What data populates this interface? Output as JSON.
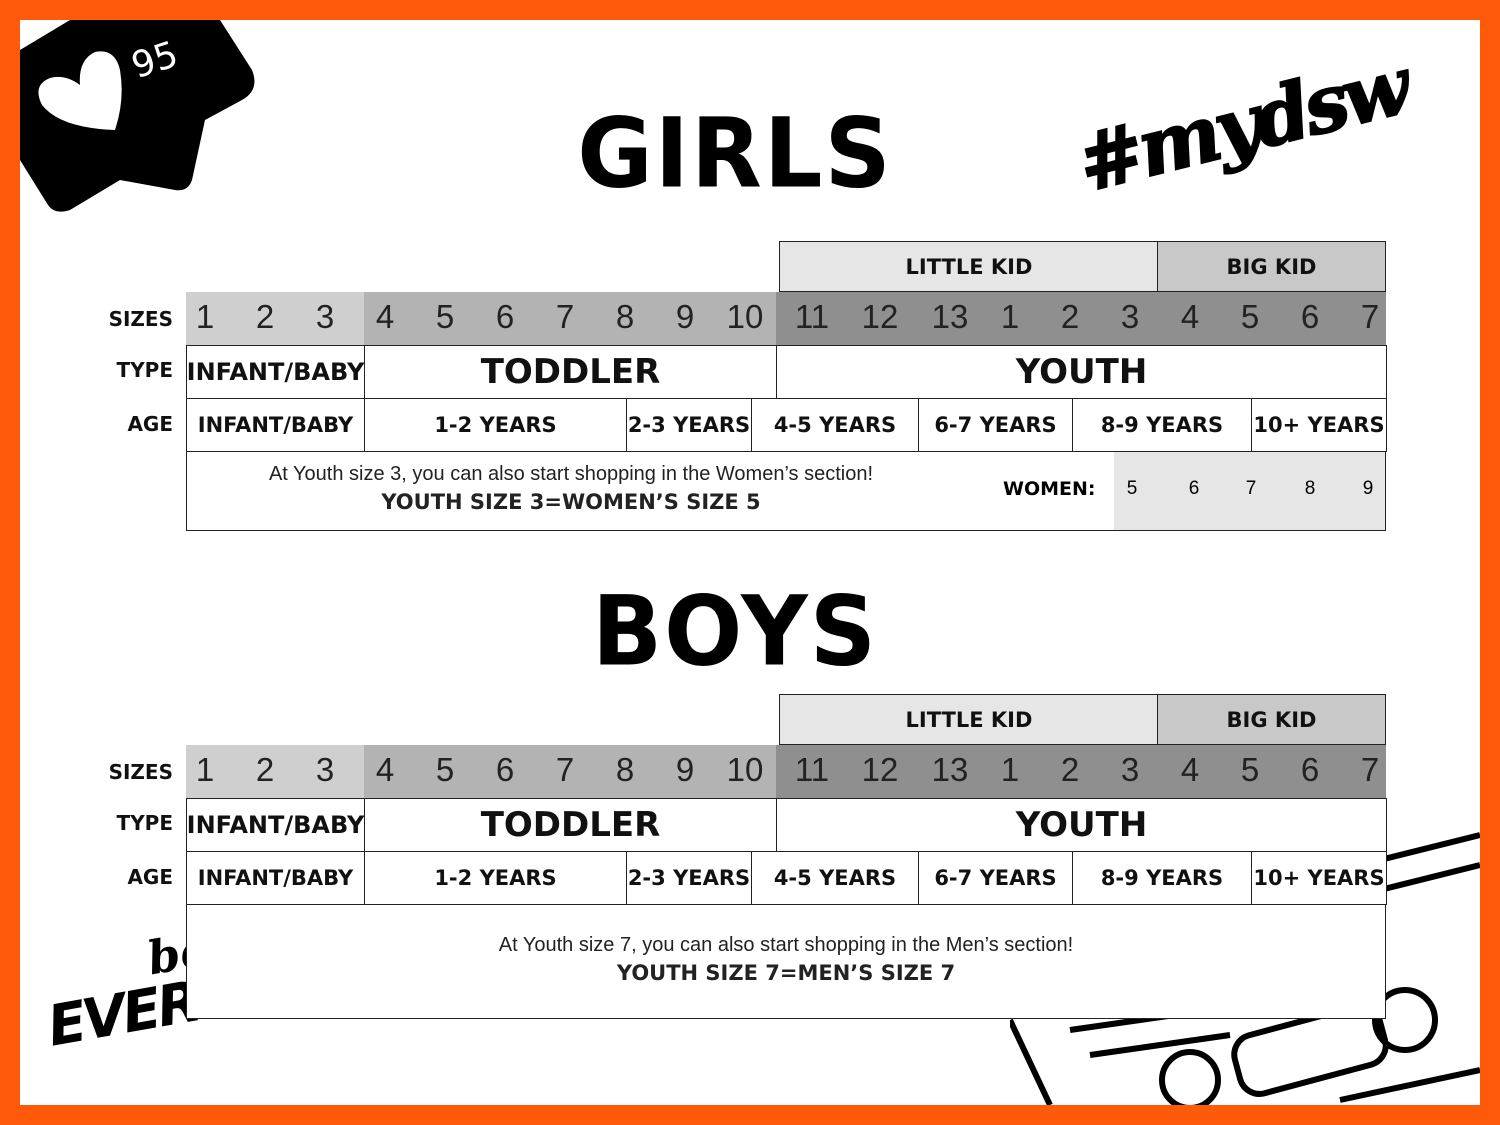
{
  "badge": {
    "likes": "95",
    "icon": "heart-icon"
  },
  "hashtag": "#mydsw",
  "logo": "best of EVERYTHING",
  "colors": {
    "border": "#ff5a0a",
    "band_infant": "#cfcfcf",
    "band_toddler": "#b3b3b3",
    "band_youth": "#8f8f8f",
    "little_kid": "#e6e6e6",
    "big_kid": "#c8c8c8",
    "women_cells": "#e6e6e6"
  },
  "row_labels": {
    "sizes": "SIZES",
    "type": "TYPE",
    "age": "AGE"
  },
  "groups": {
    "little_kid": "LITTLE KID",
    "big_kid": "BIG KID"
  },
  "sizes": [
    "1",
    "2",
    "3",
    "4",
    "5",
    "6",
    "7",
    "8",
    "9",
    "10",
    "11",
    "12",
    "13",
    "1",
    "2",
    "3",
    "4",
    "5",
    "6",
    "7"
  ],
  "types": [
    "INFANT/BABY",
    "TODDLER",
    "YOUTH"
  ],
  "ages": [
    "INFANT/BABY",
    "1-2 YEARS",
    "2-3 YEARS",
    "4-5 YEARS",
    "6-7 YEARS",
    "8-9 YEARS",
    "10+ YEARS"
  ],
  "girls": {
    "title": "GIRLS",
    "note_line1": "At Youth size 3, you can also start shopping in the Women’s section!",
    "note_line2": "YOUTH SIZE 3=WOMEN’S SIZE 5",
    "women_label": "WOMEN:",
    "women_sizes": [
      "5",
      "6",
      "7",
      "8",
      "9"
    ]
  },
  "boys": {
    "title": "BOYS",
    "note_line1": "At Youth size 7, you can also start shopping in the Men’s section!",
    "note_line2": "YOUTH SIZE 7=MEN’S SIZE 7"
  }
}
